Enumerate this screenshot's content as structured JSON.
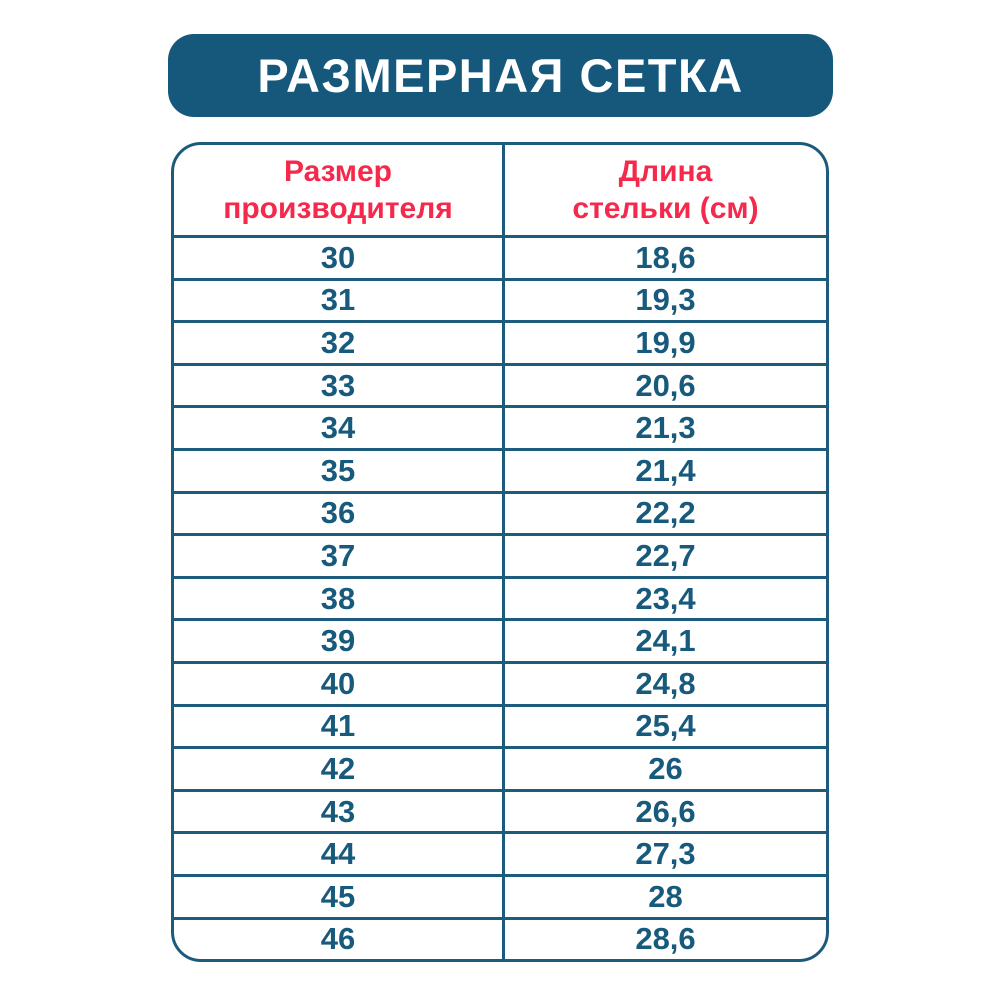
{
  "colors": {
    "teal": "#15587c",
    "border_teal": "#1d5b7c",
    "cell_text_teal": "#185a7c",
    "header_red": "#f4294c",
    "background": "#ffffff",
    "title_text": "#ffffff"
  },
  "title": {
    "text": "РАЗМЕРНАЯ СЕТКА"
  },
  "table": {
    "columns": [
      {
        "line1": "Размер",
        "line2": "производителя"
      },
      {
        "line1": "Длина",
        "line2": "стельки (см)"
      }
    ],
    "rows": [
      {
        "size": "30",
        "length": "18,6"
      },
      {
        "size": "31",
        "length": "19,3"
      },
      {
        "size": "32",
        "length": "19,9"
      },
      {
        "size": "33",
        "length": "20,6"
      },
      {
        "size": "34",
        "length": "21,3"
      },
      {
        "size": "35",
        "length": "21,4"
      },
      {
        "size": "36",
        "length": "22,2"
      },
      {
        "size": "37",
        "length": "22,7"
      },
      {
        "size": "38",
        "length": "23,4"
      },
      {
        "size": "39",
        "length": "24,1"
      },
      {
        "size": "40",
        "length": "24,8"
      },
      {
        "size": "41",
        "length": "25,4"
      },
      {
        "size": "42",
        "length": "26"
      },
      {
        "size": "43",
        "length": "26,6"
      },
      {
        "size": "44",
        "length": "27,3"
      },
      {
        "size": "45",
        "length": "28"
      },
      {
        "size": "46",
        "length": "28,6"
      }
    ]
  },
  "chart_data": {
    "type": "table",
    "title": "РАЗМЕРНАЯ СЕТКА",
    "columns": [
      "Размер производителя",
      "Длина стельки (см)"
    ],
    "rows": [
      [
        "30",
        "18,6"
      ],
      [
        "31",
        "19,3"
      ],
      [
        "32",
        "19,9"
      ],
      [
        "33",
        "20,6"
      ],
      [
        "34",
        "21,3"
      ],
      [
        "35",
        "21,4"
      ],
      [
        "36",
        "22,2"
      ],
      [
        "37",
        "22,7"
      ],
      [
        "38",
        "23,4"
      ],
      [
        "39",
        "24,1"
      ],
      [
        "40",
        "24,8"
      ],
      [
        "41",
        "25,4"
      ],
      [
        "42",
        "26"
      ],
      [
        "43",
        "26,6"
      ],
      [
        "44",
        "27,3"
      ],
      [
        "45",
        "28"
      ],
      [
        "46",
        "28,6"
      ]
    ]
  }
}
